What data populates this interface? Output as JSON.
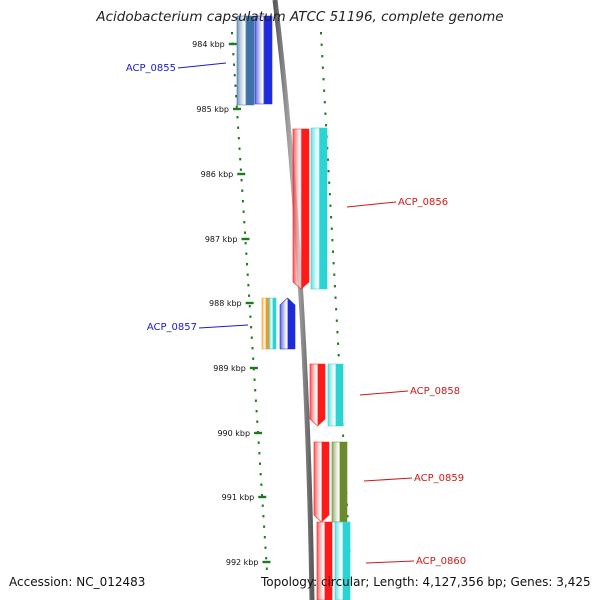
{
  "title": "Acidobacterium capsulatum ATCC 51196, complete genome",
  "footer": {
    "accession": "Accession: NC_012483",
    "summary": "Topology: circular; Length: 4,127,356 bp; Genes: 3,425"
  },
  "colors": {
    "backbone": "#8c8c8c",
    "tick": "#1f7a1f",
    "red": "#ff1a1a",
    "cyan": "#2ad4d4",
    "blue": "#1f2bd9",
    "steel": "#3f73a8",
    "orange": "#f39a1e",
    "olive": "#6b8a2b",
    "label_blue": "#1a1acc",
    "label_red": "#cc1a1a"
  },
  "ticks": [
    {
      "label": "984 kbp",
      "kbp": 984
    },
    {
      "label": "985 kbp",
      "kbp": 985
    },
    {
      "label": "986 kbp",
      "kbp": 986
    },
    {
      "label": "987 kbp",
      "kbp": 987
    },
    {
      "label": "988 kbp",
      "kbp": 988
    },
    {
      "label": "989 kbp",
      "kbp": 989
    },
    {
      "label": "990 kbp",
      "kbp": 990
    },
    {
      "label": "991 kbp",
      "kbp": 991
    },
    {
      "label": "992 kbp",
      "kbp": 992
    }
  ],
  "features": [
    {
      "name": "ACP_0855",
      "color": "label_blue"
    },
    {
      "name": "ACP_0856",
      "color": "label_red"
    },
    {
      "name": "ACP_0857",
      "color": "label_blue"
    },
    {
      "name": "ACP_0858",
      "color": "label_red"
    },
    {
      "name": "ACP_0859",
      "color": "label_red"
    },
    {
      "name": "ACP_0860",
      "color": "label_red"
    }
  ]
}
